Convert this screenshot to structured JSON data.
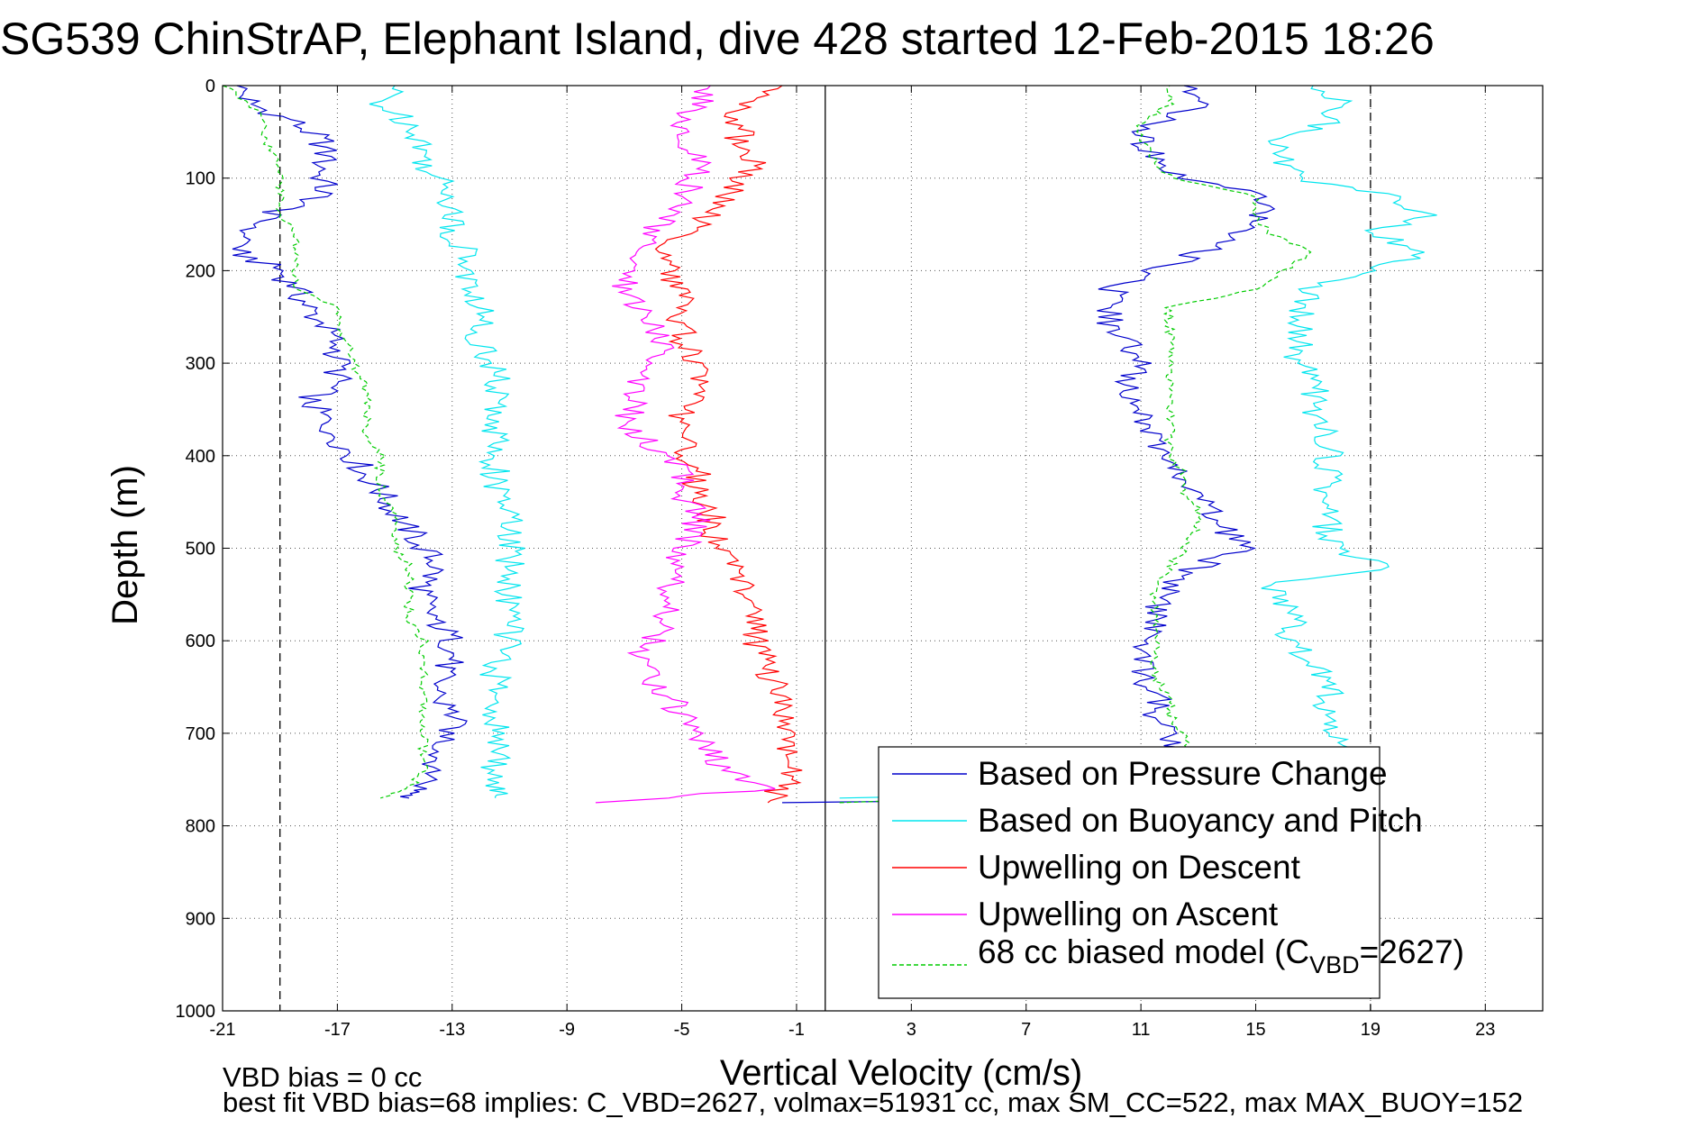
{
  "chart_data": {
    "type": "line",
    "title": "SG539 ChinStrAP, Elephant Island, dive 428 started 12-Feb-2015 18:26",
    "xlabel": "Vertical Velocity (cm/s)",
    "ylabel": "Depth (m)",
    "xlim": [
      -21,
      25
    ],
    "ylim": [
      0,
      1000
    ],
    "y_reversed": true,
    "x_ticks": [
      -21,
      -17,
      -13,
      -9,
      -5,
      -1,
      3,
      7,
      11,
      15,
      19,
      23
    ],
    "x_tick_labels": [
      "-21",
      "-17",
      "-13",
      "-9",
      "-5",
      "-1",
      "3",
      "7",
      "11",
      "15",
      "19",
      "23"
    ],
    "y_ticks": [
      0,
      100,
      200,
      300,
      400,
      500,
      600,
      700,
      800,
      900,
      1000
    ],
    "y_tick_labels": [
      "0",
      "100",
      "200",
      "300",
      "400",
      "500",
      "600",
      "700",
      "800",
      "900",
      "1000"
    ],
    "grid": true,
    "legend_position": "bottom-right",
    "reference_lines": [
      {
        "x": -19.0,
        "style": "dashed",
        "color": "#000000"
      },
      {
        "x": 0.0,
        "style": "solid",
        "color": "#000000"
      },
      {
        "x": 19.0,
        "style": "dashed",
        "color": "#000000"
      }
    ],
    "series": [
      {
        "name": "Based on Pressure Change",
        "color": "#0000cc",
        "dash": "solid",
        "segments": [
          {
            "y": [
              0,
              20,
              40,
              60,
              80,
              100,
              120,
              140,
              160,
              180,
              200,
              220,
              240,
              260,
              280,
              300,
              320,
              340,
              360,
              380,
              400,
              420,
              440,
              460,
              480,
              500,
              520,
              540,
              560,
              580,
              600,
              620,
              640,
              660,
              680,
              700,
              720,
              740,
              760,
              770
            ],
            "x": [
              -20.5,
              -20.0,
              -18.5,
              -17.5,
              -17.5,
              -17.5,
              -17.5,
              -19.5,
              -20.0,
              -20.5,
              -19.0,
              -18.5,
              -18.0,
              -17.5,
              -17.0,
              -17.0,
              -17.0,
              -18.0,
              -17.5,
              -17.0,
              -16.5,
              -16.0,
              -15.5,
              -15.0,
              -14.5,
              -14.0,
              -13.5,
              -14.0,
              -14.0,
              -13.5,
              -13.0,
              -13.0,
              -13.5,
              -13.5,
              -13.0,
              -13.0,
              -13.5,
              -13.5,
              -14.0,
              -14.5
            ]
          },
          {
            "y": [
              775,
              770,
              760,
              740,
              720,
              700,
              680,
              660,
              640,
              620,
              600,
              580,
              560,
              540,
              520,
              500,
              480,
              460,
              440,
              420,
              400,
              380,
              360,
              340,
              320,
              300,
              280,
              260,
              240,
              220,
              200,
              180,
              160,
              140,
              120,
              100,
              80,
              60,
              40,
              20,
              0
            ],
            "x": [
              -1.5,
              14.0,
              15.0,
              13.0,
              12.5,
              12.0,
              11.5,
              11.5,
              11.0,
              11.0,
              11.0,
              11.5,
              11.5,
              12.0,
              13.0,
              14.5,
              14.0,
              13.5,
              13.0,
              12.5,
              12.0,
              11.5,
              11.0,
              10.5,
              10.5,
              11.0,
              10.5,
              10.0,
              10.0,
              10.0,
              11.5,
              13.0,
              14.5,
              15.0,
              15.5,
              12.5,
              11.5,
              11.0,
              11.5,
              13.0,
              12.5
            ]
          }
        ]
      },
      {
        "name": "Based on Buoyancy and Pitch",
        "color": "#00e5ee",
        "dash": "solid",
        "segments": [
          {
            "y": [
              0,
              20,
              40,
              60,
              80,
              100,
              120,
              140,
              160,
              180,
              200,
              220,
              240,
              260,
              280,
              300,
              320,
              340,
              360,
              380,
              400,
              420,
              440,
              460,
              480,
              500,
              520,
              540,
              560,
              580,
              600,
              620,
              640,
              660,
              680,
              700,
              720,
              740,
              760,
              770
            ],
            "x": [
              -15.0,
              -15.5,
              -14.5,
              -14.0,
              -14.0,
              -13.5,
              -13.0,
              -13.0,
              -13.0,
              -12.5,
              -12.5,
              -12.5,
              -12.0,
              -12.0,
              -12.0,
              -11.5,
              -11.5,
              -11.5,
              -11.5,
              -11.5,
              -11.5,
              -11.5,
              -11.5,
              -11.0,
              -11.0,
              -11.0,
              -11.0,
              -11.0,
              -11.0,
              -11.0,
              -11.0,
              -11.5,
              -11.5,
              -11.5,
              -11.5,
              -11.5,
              -11.5,
              -11.5,
              -11.5,
              -11.5
            ]
          },
          {
            "y": [
              770,
              760,
              740,
              720,
              700,
              680,
              660,
              640,
              620,
              600,
              580,
              560,
              540,
              520,
              500,
              480,
              460,
              440,
              420,
              400,
              380,
              360,
              340,
              320,
              300,
              280,
              260,
              240,
              220,
              200,
              180,
              160,
              140,
              120,
              100,
              80,
              60,
              40,
              20,
              0
            ],
            "x": [
              0.5,
              19.5,
              17.5,
              18.5,
              17.5,
              17.5,
              17.5,
              17.5,
              17.0,
              16.0,
              16.5,
              16.0,
              15.5,
              19.5,
              17.5,
              17.5,
              17.5,
              17.5,
              17.5,
              17.5,
              17.5,
              17.0,
              17.0,
              17.0,
              16.5,
              16.5,
              16.5,
              16.5,
              17.0,
              19.0,
              21.0,
              19.0,
              21.0,
              20.0,
              16.5,
              16.0,
              15.5,
              17.5,
              18.0,
              17.0
            ]
          }
        ]
      },
      {
        "name": "Upwelling on Descent",
        "color": "#ff0000",
        "dash": "solid",
        "segments": [
          {
            "y": [
              0,
              20,
              40,
              60,
              80,
              100,
              120,
              140,
              160,
              180,
              200,
              220,
              240,
              260,
              280,
              300,
              320,
              340,
              360,
              380,
              400,
              420,
              440,
              460,
              480,
              500,
              520,
              540,
              560,
              580,
              600,
              620,
              640,
              660,
              680,
              700,
              720,
              740,
              760,
              775
            ],
            "x": [
              -1.5,
              -3.0,
              -3.0,
              -3.0,
              -2.5,
              -3.0,
              -3.5,
              -4.0,
              -5.0,
              -5.5,
              -5.5,
              -5.0,
              -5.0,
              -5.0,
              -5.0,
              -4.5,
              -4.5,
              -4.5,
              -5.0,
              -5.0,
              -5.0,
              -4.5,
              -4.5,
              -4.0,
              -4.0,
              -3.5,
              -3.0,
              -3.0,
              -2.5,
              -2.5,
              -2.5,
              -2.0,
              -2.0,
              -1.5,
              -1.5,
              -1.5,
              -1.5,
              -1.0,
              -1.5,
              -2.0
            ]
          }
        ]
      },
      {
        "name": "Upwelling on Ascent",
        "color": "#ff00ff",
        "dash": "solid",
        "segments": [
          {
            "y": [
              775,
              760,
              740,
              720,
              700,
              680,
              660,
              640,
              620,
              600,
              580,
              560,
              540,
              520,
              500,
              480,
              460,
              440,
              420,
              400,
              380,
              360,
              340,
              320,
              300,
              280,
              260,
              240,
              220,
              200,
              180,
              160,
              140,
              120,
              100,
              80,
              60,
              40,
              20,
              0
            ],
            "x": [
              -8.0,
              -2.0,
              -3.5,
              -4.0,
              -4.5,
              -5.0,
              -5.5,
              -6.0,
              -6.5,
              -6.0,
              -5.5,
              -5.5,
              -5.5,
              -5.0,
              -5.0,
              -4.5,
              -4.5,
              -5.0,
              -5.0,
              -5.5,
              -6.5,
              -7.0,
              -6.5,
              -6.5,
              -6.0,
              -5.5,
              -6.0,
              -6.5,
              -7.0,
              -7.0,
              -6.5,
              -6.0,
              -5.5,
              -5.0,
              -4.5,
              -4.5,
              -5.0,
              -5.0,
              -4.5,
              -4.0
            ]
          }
        ]
      },
      {
        "name": "68 cc biased model (C<sub>VBD</sub>=2627)",
        "legend_main": "68 cc biased model (C",
        "legend_sub": "VBD",
        "legend_tail": "=2627)",
        "color": "#00cc00",
        "dash": "dashed",
        "segments": [
          {
            "y": [
              0,
              20,
              40,
              60,
              80,
              100,
              120,
              140,
              160,
              180,
              200,
              220,
              240,
              260,
              280,
              300,
              320,
              340,
              360,
              380,
              400,
              420,
              440,
              460,
              480,
              500,
              520,
              540,
              560,
              580,
              600,
              620,
              640,
              660,
              680,
              700,
              720,
              740,
              760,
              770
            ],
            "x": [
              -21.0,
              -20.0,
              -19.5,
              -19.5,
              -19.0,
              -19.0,
              -19.0,
              -19.0,
              -18.5,
              -18.5,
              -18.5,
              -18.5,
              -17.0,
              -17.0,
              -16.5,
              -16.5,
              -16.0,
              -16.0,
              -16.0,
              -16.0,
              -15.5,
              -15.5,
              -15.5,
              -15.0,
              -15.0,
              -15.0,
              -14.5,
              -14.5,
              -14.5,
              -14.5,
              -14.0,
              -14.0,
              -14.0,
              -14.0,
              -14.0,
              -14.0,
              -14.0,
              -14.0,
              -14.5,
              -15.5
            ]
          },
          {
            "y": [
              775,
              760,
              740,
              720,
              700,
              680,
              660,
              640,
              620,
              600,
              580,
              560,
              540,
              520,
              500,
              480,
              460,
              440,
              420,
              400,
              380,
              360,
              340,
              320,
              300,
              280,
              260,
              240,
              220,
              200,
              180,
              160,
              140,
              120,
              100,
              80,
              60,
              40,
              20,
              0
            ],
            "x": [
              0.5,
              14.5,
              13.5,
              12.5,
              12.5,
              12.0,
              12.0,
              11.5,
              11.5,
              11.5,
              11.5,
              11.5,
              11.5,
              12.0,
              12.5,
              13.0,
              13.0,
              12.5,
              12.5,
              12.0,
              12.0,
              12.0,
              12.0,
              12.0,
              12.0,
              12.0,
              12.0,
              12.0,
              15.0,
              16.0,
              17.0,
              15.5,
              15.0,
              15.0,
              12.0,
              11.5,
              11.0,
              11.0,
              12.0,
              12.0
            ]
          }
        ]
      }
    ],
    "annotations": {
      "vbd_bias": "VBD bias = 0 cc",
      "best_fit": "best fit VBD bias=68 implies: C_VBD=2627, volmax=51931 cc, max SM_CC=522, max MAX_BUOY=152"
    }
  }
}
